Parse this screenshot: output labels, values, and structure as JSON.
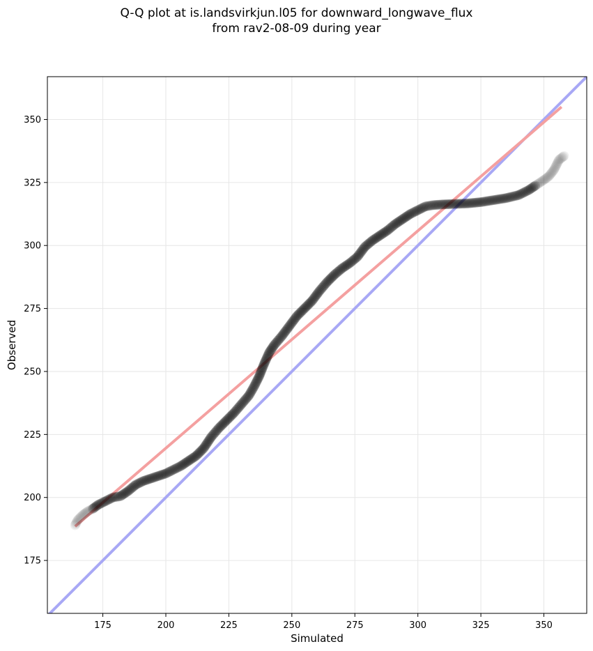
{
  "chart_data": {
    "type": "scatter",
    "title_line1": "Q-Q plot at is.landsvirkjun.l05 for downward_longwave_flux",
    "title_line2": "from rav2-08-09 during year",
    "xlabel": "Simulated",
    "ylabel": "Observed",
    "xlim": [
      153,
      367
    ],
    "ylim": [
      154,
      367
    ],
    "x_ticks": [
      175,
      200,
      225,
      250,
      275,
      300,
      325,
      350
    ],
    "y_ticks": [
      175,
      200,
      225,
      250,
      275,
      300,
      325,
      350
    ],
    "grid": true,
    "colors": {
      "points": "#000000",
      "fit_line": "#f4a0a0",
      "identity_line": "#a8a8f5"
    },
    "fit_line": {
      "x": [
        164,
        357
      ],
      "y": [
        188.5,
        355
      ]
    },
    "identity_line": {
      "x": [
        153,
        367
      ],
      "y": [
        153,
        367
      ]
    },
    "series": [
      {
        "points": [
          [
            164,
            189
          ],
          [
            165,
            191
          ],
          [
            167,
            193
          ],
          [
            169,
            194.5
          ],
          [
            171,
            195.5
          ],
          [
            173,
            197
          ],
          [
            175,
            198
          ],
          [
            177,
            199
          ],
          [
            179,
            200
          ],
          [
            182,
            200.5
          ],
          [
            185,
            202.5
          ],
          [
            188,
            205
          ],
          [
            191,
            206.5
          ],
          [
            194,
            207.5
          ],
          [
            197,
            208.5
          ],
          [
            200,
            209.5
          ],
          [
            203,
            211
          ],
          [
            206,
            212.5
          ],
          [
            209,
            214.5
          ],
          [
            212,
            216.5
          ],
          [
            215,
            219.5
          ],
          [
            218,
            224
          ],
          [
            221,
            227.5
          ],
          [
            224,
            230.5
          ],
          [
            227,
            233.5
          ],
          [
            230,
            237
          ],
          [
            233,
            240.5
          ],
          [
            235,
            244
          ],
          [
            237,
            248
          ],
          [
            239,
            253
          ],
          [
            241,
            257.5
          ],
          [
            243,
            260.5
          ],
          [
            246,
            264
          ],
          [
            249,
            268
          ],
          [
            252,
            272
          ],
          [
            255,
            275
          ],
          [
            258,
            278
          ],
          [
            261,
            282
          ],
          [
            264,
            285.5
          ],
          [
            267,
            288.5
          ],
          [
            270,
            291
          ],
          [
            273,
            293
          ],
          [
            276,
            295.5
          ],
          [
            279,
            299.5
          ],
          [
            282,
            302
          ],
          [
            285,
            304
          ],
          [
            288,
            306
          ],
          [
            291,
            308.5
          ],
          [
            294,
            310.5
          ],
          [
            297,
            312.5
          ],
          [
            300,
            314
          ],
          [
            303,
            315.5
          ],
          [
            306,
            316
          ],
          [
            310,
            316.3
          ],
          [
            315,
            316.5
          ],
          [
            320,
            316.7
          ],
          [
            325,
            317.2
          ],
          [
            330,
            318
          ],
          [
            335,
            318.8
          ],
          [
            340,
            320
          ],
          [
            344,
            322
          ],
          [
            347,
            324
          ],
          [
            350,
            326
          ],
          [
            352,
            327.5
          ],
          [
            354,
            330
          ],
          [
            356,
            334
          ],
          [
            358,
            335.5
          ]
        ]
      }
    ]
  }
}
